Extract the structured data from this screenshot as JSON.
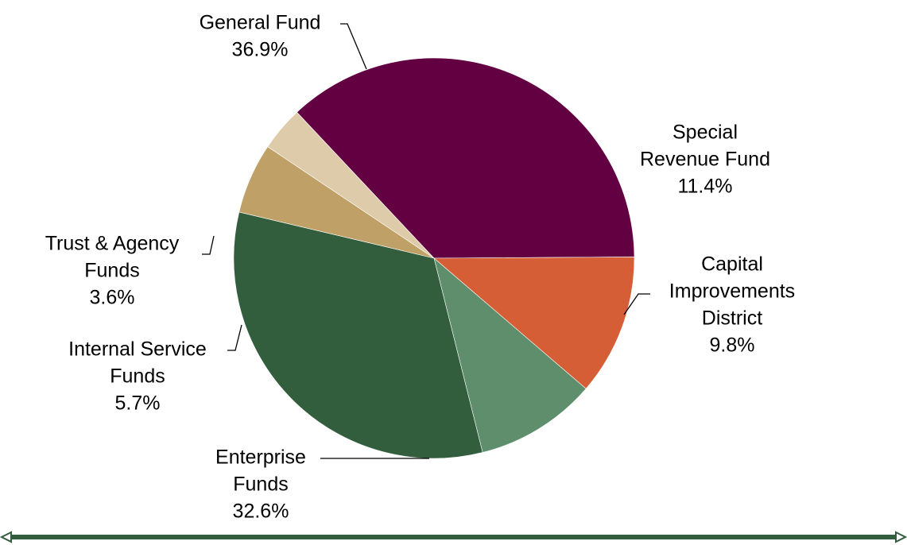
{
  "chart_data": {
    "type": "pie",
    "slices": [
      {
        "lines": [
          "General Fund"
        ],
        "percent_label": "36.9%",
        "value": 36.9,
        "color": "#620042"
      },
      {
        "lines": [
          "Special",
          "Revenue Fund"
        ],
        "percent_label": "11.4%",
        "value": 11.4,
        "color": "#d55e36"
      },
      {
        "lines": [
          "Capital",
          "Improvements",
          "District"
        ],
        "percent_label": "9.8%",
        "value": 9.8,
        "color": "#5e8e6c"
      },
      {
        "lines": [
          "Enterprise",
          "Funds"
        ],
        "percent_label": "32.6%",
        "value": 32.6,
        "color": "#335e3e"
      },
      {
        "lines": [
          "Internal Service",
          "Funds"
        ],
        "percent_label": "5.7%",
        "value": 5.7,
        "color": "#bfa066"
      },
      {
        "lines": [
          "Trust & Agency",
          "Funds"
        ],
        "percent_label": "3.6%",
        "value": 3.6,
        "color": "#decbaa"
      }
    ],
    "divider_color": "#335e3e"
  }
}
